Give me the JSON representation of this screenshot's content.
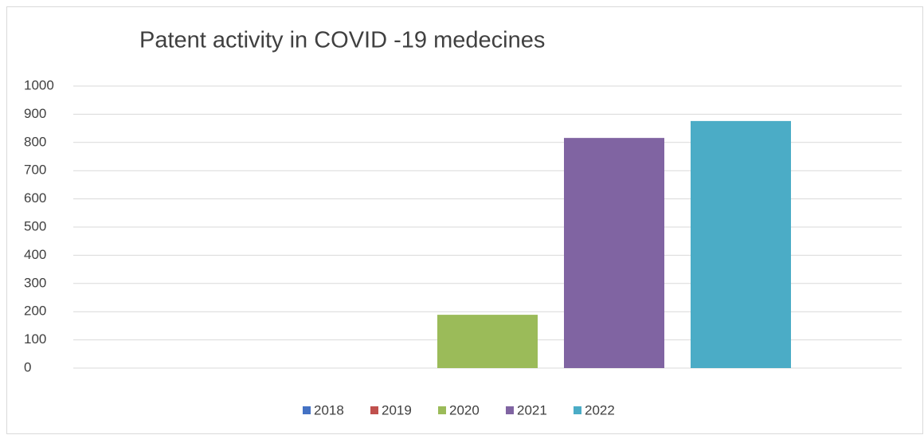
{
  "chart_data": {
    "type": "bar",
    "title": "Patent activity in COVID -19 medecines",
    "categories": [
      null
    ],
    "series": [
      {
        "name": "2018",
        "color": "#4472c4",
        "values": [
          0
        ]
      },
      {
        "name": "2019",
        "color": "#c0504d",
        "values": [
          0
        ]
      },
      {
        "name": "2020",
        "color": "#9bbb59",
        "values": [
          189
        ]
      },
      {
        "name": "2021",
        "color": "#8064a2",
        "values": [
          816
        ]
      },
      {
        "name": "2022",
        "color": "#4bacc6",
        "values": [
          876
        ]
      }
    ],
    "ylim": [
      0,
      1000
    ],
    "yticks": [
      0,
      100,
      200,
      300,
      400,
      500,
      600,
      700,
      800,
      900,
      1000
    ],
    "grid": true,
    "legend": "bottom"
  }
}
